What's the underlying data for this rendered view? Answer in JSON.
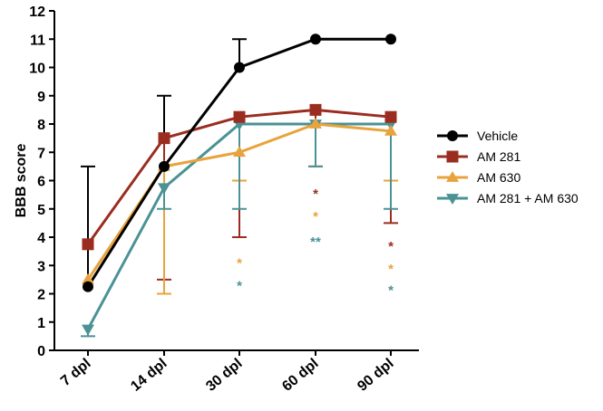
{
  "chart_data": {
    "type": "line",
    "categories": [
      "7 dpl",
      "14 dpl",
      "30 dpl",
      "60 dpl",
      "90 dpl"
    ],
    "ylabel": "BBB score",
    "xlabel": "",
    "ylim": [
      0,
      12
    ],
    "yticks": [
      0,
      1,
      2,
      3,
      4,
      5,
      6,
      7,
      8,
      9,
      10,
      11,
      12
    ],
    "grid": false,
    "legend_position": "right",
    "series": [
      {
        "name": "Vehicle",
        "color": "#000000",
        "marker": "circle",
        "values": [
          2.25,
          6.5,
          10,
          11,
          11
        ],
        "error_up": [
          6.5,
          9,
          11,
          null,
          null
        ],
        "error_down": [
          null,
          null,
          null,
          null,
          null
        ]
      },
      {
        "name": "AM 281",
        "color": "#9b2d20",
        "marker": "square",
        "values": [
          3.75,
          7.5,
          8.25,
          8.5,
          8.25
        ],
        "error_up": [
          null,
          null,
          null,
          null,
          null
        ],
        "error_down": [
          null,
          2.5,
          4,
          6.5,
          4.5
        ]
      },
      {
        "name": "AM 630",
        "color": "#e8a33c",
        "marker": "triangle-up",
        "values": [
          2.5,
          6.5,
          7,
          8,
          7.75
        ],
        "error_up": [
          null,
          null,
          null,
          null,
          null
        ],
        "error_down": [
          null,
          2,
          6,
          6.5,
          6
        ]
      },
      {
        "name": "AM 281 + AM 630",
        "color": "#4a9296",
        "marker": "triangle-down",
        "values": [
          0.75,
          5.75,
          8,
          8,
          8
        ],
        "error_up": [
          null,
          null,
          null,
          null,
          null
        ],
        "error_down": [
          0.5,
          5,
          5,
          6.5,
          5
        ]
      }
    ],
    "annotations": [
      {
        "category": "30 dpl",
        "text": "*",
        "y": 3.15,
        "color": "#e8a33c"
      },
      {
        "category": "30 dpl",
        "text": "*",
        "y": 2.35,
        "color": "#4a9296"
      },
      {
        "category": "60 dpl",
        "text": "*",
        "y": 5.6,
        "color": "#9b2d20"
      },
      {
        "category": "60 dpl",
        "text": "*",
        "y": 4.8,
        "color": "#e8a33c"
      },
      {
        "category": "60 dpl",
        "text": "**",
        "y": 3.9,
        "color": "#4a9296"
      },
      {
        "category": "90 dpl",
        "text": "*",
        "y": 3.75,
        "color": "#9b2d20"
      },
      {
        "category": "90 dpl",
        "text": "*",
        "y": 2.95,
        "color": "#e8a33c"
      },
      {
        "category": "90 dpl",
        "text": "*",
        "y": 2.2,
        "color": "#4a9296"
      }
    ]
  }
}
